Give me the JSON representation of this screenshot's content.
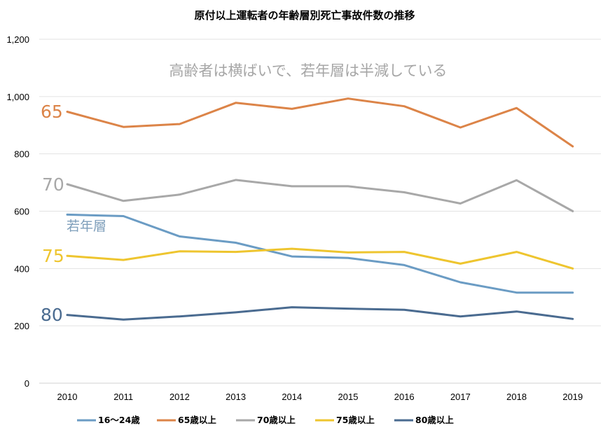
{
  "chart_data": {
    "type": "line",
    "title": "原付以上運転者の年齢層別死亡事故件数の推移",
    "annotation": "高齢者は横ばいで、若年層は半減している",
    "xlabel": "",
    "ylabel": "",
    "ylim": [
      0,
      1200
    ],
    "yticks": [
      0,
      200,
      400,
      600,
      800,
      1000,
      1200
    ],
    "ytick_labels": [
      "0",
      "200",
      "400",
      "600",
      "800",
      "1,000",
      "1,200"
    ],
    "categories": [
      "2010",
      "2011",
      "2012",
      "2013",
      "2014",
      "2015",
      "2016",
      "2017",
      "2018",
      "2019"
    ],
    "grid": true,
    "legend_position": "bottom",
    "series": [
      {
        "name": "16～24歳",
        "color": "#6b9cc4",
        "values": [
          588,
          583,
          512,
          490,
          442,
          437,
          412,
          352,
          316,
          316
        ]
      },
      {
        "name": "65歳以上",
        "color": "#dc8448",
        "values": [
          947,
          894,
          904,
          978,
          957,
          993,
          966,
          892,
          960,
          826
        ]
      },
      {
        "name": "70歳以上",
        "color": "#a8a8a8",
        "values": [
          694,
          636,
          658,
          709,
          687,
          687,
          666,
          627,
          708,
          600
        ]
      },
      {
        "name": "75歳以上",
        "color": "#eec52f",
        "values": [
          444,
          430,
          460,
          458,
          469,
          456,
          458,
          417,
          458,
          400
        ]
      },
      {
        "name": "80歳以上",
        "color": "#4a6b90",
        "values": [
          238,
          222,
          233,
          247,
          265,
          260,
          256,
          233,
          250,
          224
        ]
      }
    ],
    "series_labels": [
      {
        "text": "65",
        "series": "65歳以上"
      },
      {
        "text": "70",
        "series": "70歳以上"
      },
      {
        "text": "75",
        "series": "75歳以上"
      },
      {
        "text": "80",
        "series": "80歳以上"
      },
      {
        "text": "若年層",
        "series": "16～24歳"
      }
    ]
  }
}
